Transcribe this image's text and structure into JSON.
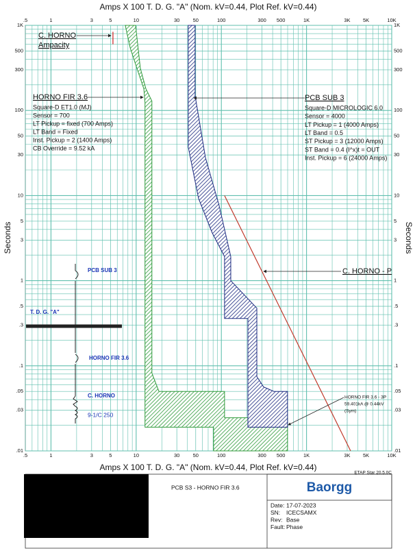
{
  "chart_data": {
    "type": "line",
    "xlabel": "Amps  X  100   T. D. G. \"A\" (Nom. kV=0.44, Plot Ref. kV=0.44)",
    "ylabel": "Seconds",
    "xscale": "log",
    "yscale": "log",
    "xlim": [
      0.5,
      10000
    ],
    "ylim": [
      0.01,
      1000
    ],
    "xticks": [
      {
        "value": 0.5,
        "label": ".5"
      },
      1,
      3,
      5,
      10,
      30,
      50,
      100,
      300,
      500,
      {
        "value": 1000,
        "label": "1K"
      },
      {
        "value": 3000,
        "label": "3K"
      },
      {
        "value": 5000,
        "label": "5K"
      },
      {
        "value": 10000,
        "label": "10K"
      }
    ],
    "yticks": [
      {
        "value": 1000,
        "label": "1K"
      },
      500,
      300,
      100,
      50,
      30,
      10,
      5,
      3,
      1,
      {
        "value": 0.5,
        "label": ".5"
      },
      {
        "value": 0.3,
        "label": ".3"
      },
      {
        "value": 0.1,
        "label": ".1"
      },
      {
        "value": 0.05,
        "label": ".05"
      },
      {
        "value": 0.03,
        "label": ".03"
      },
      {
        "value": 0.01,
        "label": ".01"
      }
    ],
    "grid": true,
    "grid_color": "#5fbfae",
    "xgrid": [
      0.6,
      0.7,
      0.8,
      0.9,
      2,
      4,
      6,
      7,
      8,
      9,
      20,
      40,
      60,
      70,
      80,
      90,
      200,
      400,
      600,
      700,
      800,
      900,
      2000,
      4000,
      6000,
      7000,
      8000,
      9000
    ],
    "ygrid": [
      0.02,
      0.04,
      0.06,
      0.07,
      0.08,
      0.09,
      0.2,
      0.4,
      0.6,
      0.7,
      0.8,
      0.9,
      2,
      4,
      6,
      7,
      8,
      9,
      20,
      40,
      60,
      70,
      80,
      90,
      200,
      400,
      600,
      700,
      800,
      900
    ],
    "series": [
      {
        "name": "HORNO FIR 3.6",
        "color": "#2e9a3a",
        "style": "hatch",
        "x": [
          7.45,
          8.5,
          10.2,
          12.3,
          12.7,
          12.7,
          81,
          81,
          598,
          598,
          109,
          109,
          18.5,
          15.3,
          15.3,
          13,
          11.2,
          9.84
        ],
        "y": [
          1000,
          546,
          313,
          180,
          124,
          0.019,
          0.019,
          0.01,
          0.01,
          0.0245,
          0.0245,
          0.05,
          0.05,
          0.082,
          129,
          180,
          313,
          1000
        ]
      },
      {
        "name": "PCB SUB 3",
        "color": "#1c2a80",
        "style": "hatch",
        "x": [
          40.9,
          40.9,
          54,
          78,
          109,
          109,
          205,
          205,
          598,
          598,
          414,
          313,
          261,
          261,
          129,
          129,
          94,
          65,
          49.2,
          49.2
        ],
        "y": [
          1000,
          37,
          9.25,
          3.66,
          1.92,
          0.36,
          0.36,
          0.019,
          0.019,
          0.05,
          0.05,
          0.0565,
          0.0746,
          0.476,
          1,
          1.92,
          7.69,
          28,
          149,
          1000
        ]
      },
      {
        "name": "C. HORNO - P",
        "color": "#c0392b",
        "style": "line",
        "x": [
          109,
          3290
        ],
        "y": [
          10,
          0.01
        ]
      },
      {
        "name": "C. HORNO",
        "color": "#d02020",
        "style": "line",
        "x": [
          5.34,
          5.34
        ],
        "y": [
          840,
          600
        ]
      }
    ],
    "ampacity_label": "Ampacity",
    "device_settings": [
      [
        "Square-D  ET1.0 (MJ)",
        "Sensor = 700",
        "LT Pickup = fixed (700 Amps)",
        "LT Band = Fixed",
        "Inst. Pickup = 2 (1400 Amps)",
        "CB Override = 9.52 kA"
      ],
      [
        "Square-D  MICROLOGIC 6.0",
        "Sensor = 4000",
        "LT Pickup = 1 (4000 Amps)",
        "LT Band = 0.5",
        "ST Pickup = 3 (12000 Amps)",
        "ST Band = 0.4  (I^x)t = OUT",
        "Inst. Pickup = 6 (24000 Amps)"
      ]
    ],
    "fault_label": [
      "HORNO FIR 3.6 - 3P",
      "59.401kA @ 0.44kV",
      "(Sym)"
    ]
  },
  "one_line": {
    "labels": [
      "PCB SUB 3",
      "T. D. G. \"A\"",
      "HORNO FIR 3.6",
      "C. HORNO",
      "9-1/C 250"
    ]
  },
  "title_block": {
    "software": "ETAP Star 20.5.0C",
    "title": "PCB S3 - HORNO FIR 3.6",
    "logo": "Baorgg",
    "fields": [
      [
        "Date:",
        "17-07-2023"
      ],
      [
        "SN:",
        "ICECSAMX"
      ],
      [
        "Rev:",
        "Base"
      ],
      [
        "Fault:",
        "Phase"
      ]
    ]
  }
}
